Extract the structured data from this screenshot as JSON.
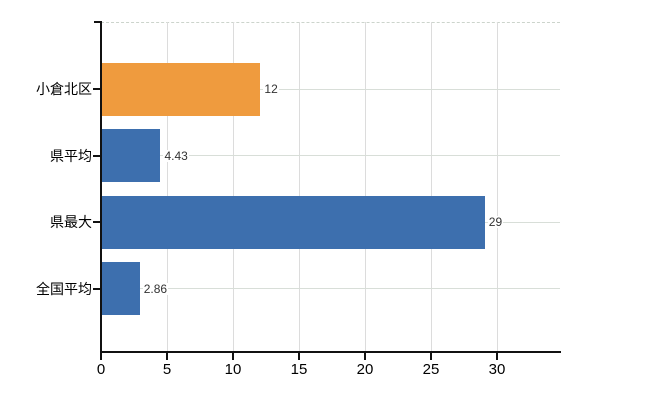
{
  "chart_data": {
    "type": "bar",
    "orientation": "horizontal",
    "title": "",
    "xlabel": "",
    "ylabel": "",
    "categories": [
      "小倉北区",
      "県平均",
      "県最大",
      "全国平均"
    ],
    "values": [
      12,
      4.43,
      29,
      2.86
    ],
    "value_labels": [
      "12",
      "4.43",
      "29",
      "2.86"
    ],
    "bar_colors": [
      "#EF9B3E",
      "#3D6FAE",
      "#3D6FAE",
      "#3D6FAE"
    ],
    "x_ticks": [
      0,
      5,
      10,
      15,
      20,
      25,
      30
    ],
    "x_tick_labels": [
      "0",
      "5",
      "10",
      "15",
      "20",
      "25",
      "30"
    ],
    "xlim": [
      0,
      34.8
    ],
    "grid": "on",
    "legend": "none",
    "colors": {
      "highlight_bar": "#EF9B3E",
      "default_bar": "#3D6FAE",
      "axis": "#111111",
      "gridline": "#dcdcdc",
      "category_gridline": "#d8ded8",
      "top_border_dashed": "#ccd4cc",
      "value_text": "#333333",
      "tick_text": "#000000",
      "background": "#ffffff"
    }
  }
}
